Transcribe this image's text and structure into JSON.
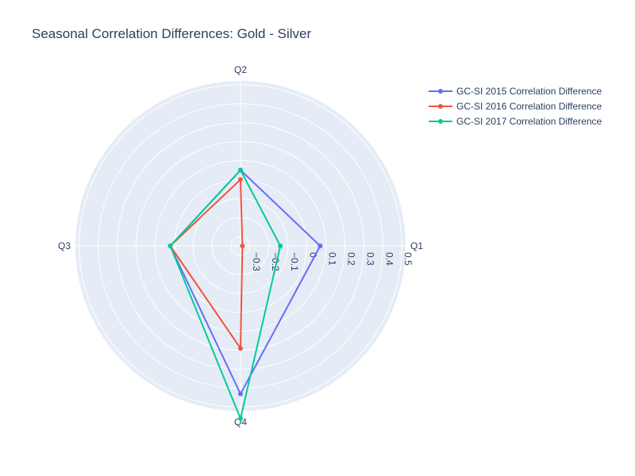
{
  "chart_data": {
    "type": "radar",
    "title": "Seasonal Correlation Differences: Gold - Silver",
    "theta_labels": [
      "Q1",
      "Q2",
      "Q3",
      "Q4"
    ],
    "radial_range": [
      -0.35,
      0.52
    ],
    "radial_ticks": [
      -0.3,
      -0.2,
      -0.1,
      0,
      0.1,
      0.2,
      0.3,
      0.4,
      0.5
    ],
    "radial_tick_labels": [
      "−0.3",
      "−0.2",
      "−0.1",
      "0",
      "0.1",
      "0.2",
      "0.3",
      "0.4",
      "0.5"
    ],
    "series": [
      {
        "name": "GC-SI 2015 Correlation Difference",
        "color": "#636efa",
        "values": [
          0.07,
          0.05,
          0.02,
          0.43
        ]
      },
      {
        "name": "GC-SI 2016 Correlation Difference",
        "color": "#ef553b",
        "values": [
          -0.34,
          0.0,
          0.02,
          0.19
        ]
      },
      {
        "name": "GC-SI 2017 Correlation Difference",
        "color": "#00cc96",
        "values": [
          -0.14,
          0.05,
          0.02,
          0.56
        ]
      }
    ],
    "legend_position": "top-right",
    "grid": true,
    "background_color": "#e5ecf6"
  }
}
